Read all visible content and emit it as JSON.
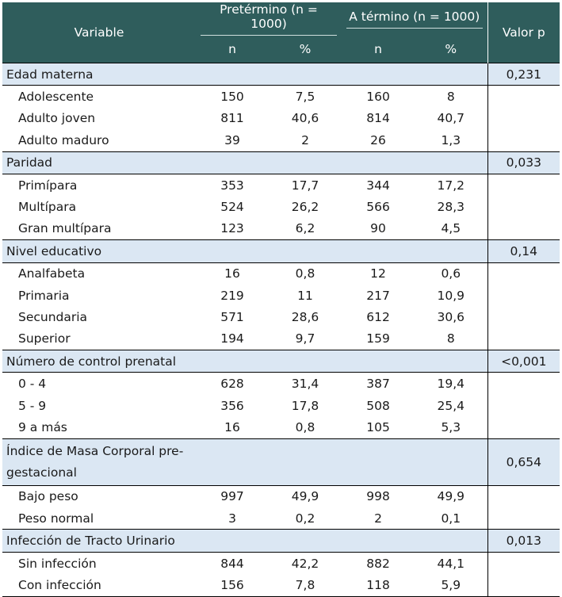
{
  "header": {
    "variable": "Variable",
    "group_preterm": "Pretérmino (n = 1000)",
    "group_term": "A término (n = 1000)",
    "p_value": "Valor p",
    "n": "n",
    "pct": "%"
  },
  "sections": [
    {
      "title": "Edad materna",
      "p": "0,231",
      "rows": [
        {
          "label": "Adolescente",
          "n1": "150",
          "p1": "7,5",
          "n2": "160",
          "p2": "8"
        },
        {
          "label": "Adulto joven",
          "n1": "811",
          "p1": "40,6",
          "n2": "814",
          "p2": "40,7"
        },
        {
          "label": "Adulto maduro",
          "n1": "39",
          "p1": "2",
          "n2": "26",
          "p2": "1,3"
        }
      ]
    },
    {
      "title": "Paridad",
      "p": "0,033",
      "rows": [
        {
          "label": "Primípara",
          "n1": "353",
          "p1": "17,7",
          "n2": "344",
          "p2": "17,2"
        },
        {
          "label": "Multípara",
          "n1": "524",
          "p1": "26,2",
          "n2": "566",
          "p2": "28,3"
        },
        {
          "label": "Gran multípara",
          "n1": "123",
          "p1": "6,2",
          "n2": "90",
          "p2": "4,5"
        }
      ]
    },
    {
      "title": "Nivel educativo",
      "p": "0,14",
      "rows": [
        {
          "label": "Analfabeta",
          "n1": "16",
          "p1": "0,8",
          "n2": "12",
          "p2": "0,6"
        },
        {
          "label": "Primaria",
          "n1": "219",
          "p1": "11",
          "n2": "217",
          "p2": "10,9"
        },
        {
          "label": "Secundaria",
          "n1": "571",
          "p1": "28,6",
          "n2": "612",
          "p2": "30,6"
        },
        {
          "label": "Superior",
          "n1": "194",
          "p1": "9,7",
          "n2": "159",
          "p2": "8"
        }
      ]
    },
    {
      "title": "Número de control prenatal",
      "p": "<0,001",
      "rows": [
        {
          "label": "0 - 4",
          "n1": "628",
          "p1": "31,4",
          "n2": "387",
          "p2": "19,4"
        },
        {
          "label": "5 - 9",
          "n1": "356",
          "p1": "17,8",
          "n2": "508",
          "p2": "25,4"
        },
        {
          "label": "9 a más",
          "n1": "16",
          "p1": "0,8",
          "n2": "105",
          "p2": "5,3"
        }
      ]
    },
    {
      "title_line1": "Índice de Masa Corporal pre-",
      "title_line2": "gestacional",
      "p": "0,654",
      "rows": [
        {
          "label": "Bajo peso",
          "n1": "997",
          "p1": "49,9",
          "n2": "998",
          "p2": "49,9"
        },
        {
          "label": "Peso normal",
          "n1": "3",
          "p1": "0,2",
          "n2": "2",
          "p2": "0,1"
        }
      ]
    },
    {
      "title": "Infección de Tracto Urinario",
      "p": "0,013",
      "rows": [
        {
          "label": "Sin infección",
          "n1": "844",
          "p1": "42,2",
          "n2": "882",
          "p2": "44,1"
        },
        {
          "label": "Con infección",
          "n1": "156",
          "p1": "7,8",
          "n2": "118",
          "p2": "5,9"
        }
      ]
    }
  ]
}
